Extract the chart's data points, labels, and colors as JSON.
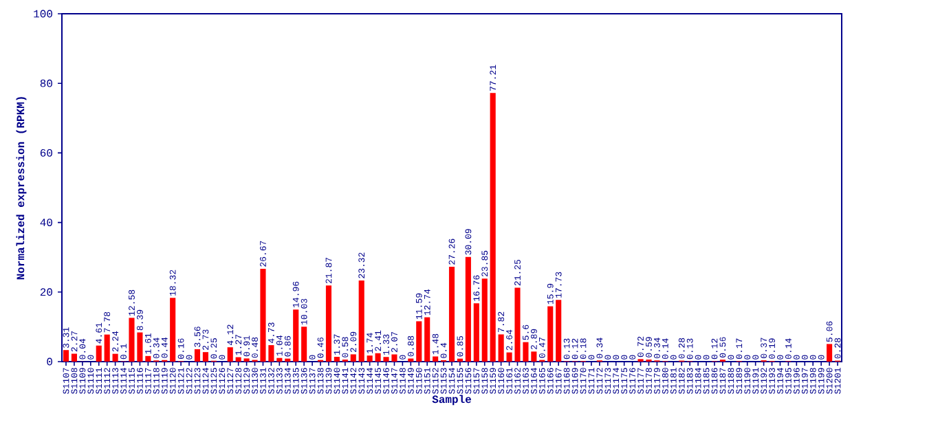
{
  "chart_data": {
    "type": "bar",
    "xlabel": "Sample",
    "ylabel": "Normalized expression (RPKM)",
    "categories": [
      "S1107",
      "S1108",
      "S1109",
      "S1110",
      "S1111",
      "S1112",
      "S1113",
      "S1114",
      "S1115",
      "S1116",
      "S1117",
      "S1118",
      "S1119",
      "S1120",
      "S1121",
      "S1122",
      "S1123",
      "S1124",
      "S1125",
      "S1126",
      "S1127",
      "S1128",
      "S1129",
      "S1130",
      "S1131",
      "S1132",
      "S1133",
      "S1134",
      "S1135",
      "S1136",
      "S1137",
      "S1138",
      "S1139",
      "S1140",
      "S1141",
      "S1142",
      "S1143",
      "S1144",
      "S1145",
      "S1146",
      "S1147",
      "S1148",
      "S1149",
      "S1150",
      "S1151",
      "S1152",
      "S1153",
      "S1154",
      "S1155",
      "S1156",
      "S1157",
      "S1158",
      "S1159",
      "S1160",
      "S1161",
      "S1162",
      "S1163",
      "S1164",
      "S1165",
      "S1166",
      "S1167",
      "S1168",
      "S1169",
      "S1170",
      "S1171",
      "S1172",
      "S1173",
      "S1174",
      "S1175",
      "S1176",
      "S1177",
      "S1178",
      "S1179",
      "S1180",
      "S1181",
      "S1182",
      "S1183",
      "S1184",
      "S1185",
      "S1186",
      "S1187",
      "S1188",
      "S1189",
      "S1190",
      "S1191",
      "S1192",
      "S1193",
      "S1194",
      "S1195",
      "S1196",
      "S1197",
      "S1198",
      "S1199",
      "S1200",
      "S1201"
    ],
    "values": [
      3.31,
      2.27,
      0.04,
      0,
      4.61,
      7.78,
      2.24,
      0.1,
      12.58,
      8.39,
      1.61,
      0.34,
      0.44,
      18.32,
      0.16,
      0,
      3.56,
      2.73,
      0.25,
      0,
      4.12,
      1.27,
      0.91,
      0.48,
      26.67,
      4.73,
      1.04,
      0.86,
      14.96,
      10.03,
      0,
      0.46,
      21.87,
      1.37,
      0.58,
      2.09,
      23.32,
      1.74,
      2.41,
      1.33,
      2.07,
      0,
      0.88,
      11.59,
      12.74,
      1.48,
      0.4,
      27.26,
      0.85,
      30.09,
      16.76,
      23.85,
      77.21,
      7.82,
      2.64,
      21.25,
      5.6,
      2.89,
      0.47,
      15.9,
      17.73,
      0.13,
      0.12,
      0.18,
      0,
      0.34,
      0,
      0,
      0,
      0,
      0.72,
      0.59,
      0.34,
      0.14,
      0,
      0.28,
      0.13,
      0,
      0,
      0.12,
      0.56,
      0,
      0.17,
      0,
      0,
      0.37,
      0.19,
      0,
      0.14,
      0,
      0,
      0,
      0,
      5.06,
      0.28
    ],
    "color": "#ff0000",
    "ylim": [
      0,
      100
    ],
    "yticks": [
      0,
      20,
      40,
      60,
      80,
      100
    ],
    "data_labels": true
  }
}
